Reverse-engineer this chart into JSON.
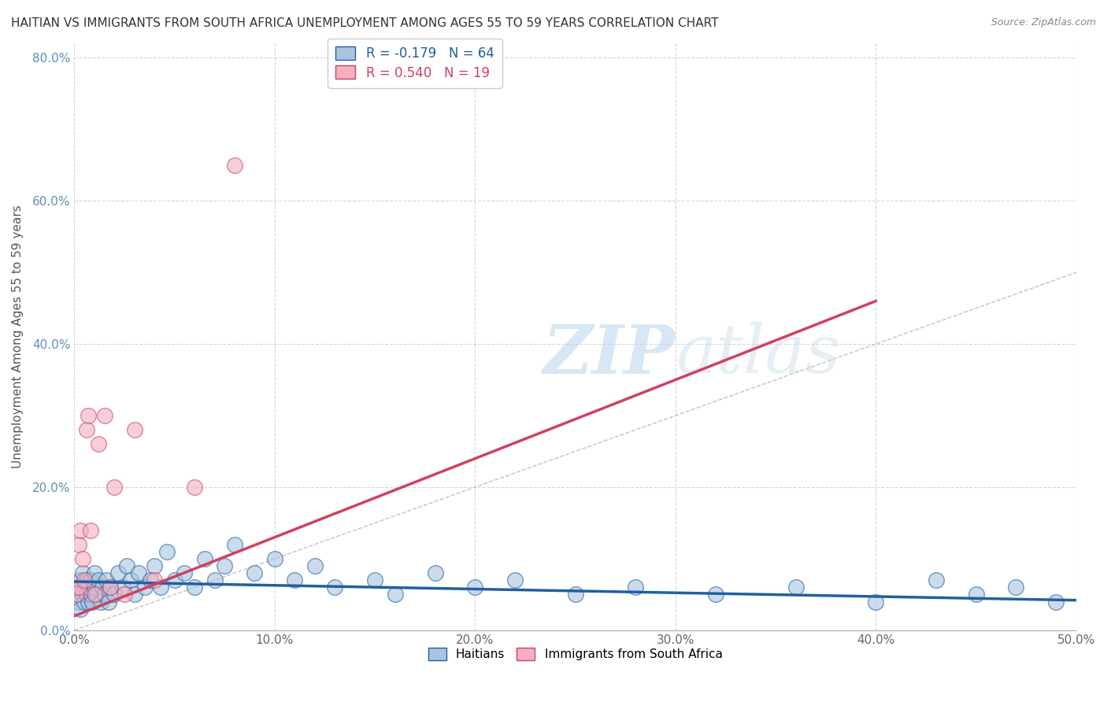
{
  "title": "HAITIAN VS IMMIGRANTS FROM SOUTH AFRICA UNEMPLOYMENT AMONG AGES 55 TO 59 YEARS CORRELATION CHART",
  "source": "Source: ZipAtlas.com",
  "xlabel": "",
  "ylabel": "Unemployment Among Ages 55 to 59 years",
  "xlim": [
    0,
    0.5
  ],
  "ylim": [
    0.0,
    0.82
  ],
  "xticks": [
    0.0,
    0.1,
    0.2,
    0.3,
    0.4,
    0.5
  ],
  "xticklabels": [
    "0.0%",
    "10.0%",
    "20.0%",
    "30.0%",
    "40.0%",
    "50.0%"
  ],
  "yticks": [
    0.0,
    0.2,
    0.4,
    0.6,
    0.8
  ],
  "yticklabels": [
    "0.0%",
    "20.0%",
    "40.0%",
    "60.0%",
    "80.0%"
  ],
  "haitian_R": -0.179,
  "haitian_N": 64,
  "sa_R": 0.54,
  "sa_N": 19,
  "haitian_color": "#a8c4e0",
  "haitian_line_color": "#2060a0",
  "sa_color": "#f4b0c0",
  "sa_line_color": "#d04060",
  "watermark_zip": "ZIP",
  "watermark_atlas": "atlas",
  "background_color": "#ffffff",
  "grid_color": "#cccccc",
  "haitian_x": [
    0.001,
    0.002,
    0.002,
    0.003,
    0.003,
    0.004,
    0.004,
    0.005,
    0.005,
    0.006,
    0.006,
    0.007,
    0.007,
    0.008,
    0.008,
    0.009,
    0.01,
    0.01,
    0.011,
    0.012,
    0.013,
    0.014,
    0.015,
    0.016,
    0.017,
    0.018,
    0.02,
    0.022,
    0.024,
    0.026,
    0.028,
    0.03,
    0.032,
    0.035,
    0.038,
    0.04,
    0.043,
    0.046,
    0.05,
    0.055,
    0.06,
    0.065,
    0.07,
    0.075,
    0.08,
    0.09,
    0.1,
    0.11,
    0.12,
    0.13,
    0.15,
    0.16,
    0.18,
    0.2,
    0.22,
    0.25,
    0.28,
    0.32,
    0.36,
    0.4,
    0.43,
    0.45,
    0.47,
    0.49
  ],
  "haitian_y": [
    0.05,
    0.04,
    0.06,
    0.03,
    0.07,
    0.05,
    0.08,
    0.04,
    0.06,
    0.05,
    0.07,
    0.04,
    0.06,
    0.05,
    0.07,
    0.04,
    0.06,
    0.08,
    0.05,
    0.07,
    0.04,
    0.06,
    0.05,
    0.07,
    0.04,
    0.06,
    0.05,
    0.08,
    0.06,
    0.09,
    0.07,
    0.05,
    0.08,
    0.06,
    0.07,
    0.09,
    0.06,
    0.11,
    0.07,
    0.08,
    0.06,
    0.1,
    0.07,
    0.09,
    0.12,
    0.08,
    0.1,
    0.07,
    0.09,
    0.06,
    0.07,
    0.05,
    0.08,
    0.06,
    0.07,
    0.05,
    0.06,
    0.05,
    0.06,
    0.04,
    0.07,
    0.05,
    0.06,
    0.04
  ],
  "sa_x": [
    0.001,
    0.002,
    0.002,
    0.003,
    0.004,
    0.005,
    0.006,
    0.007,
    0.008,
    0.01,
    0.012,
    0.015,
    0.018,
    0.02,
    0.025,
    0.03,
    0.04,
    0.06,
    0.08
  ],
  "sa_y": [
    0.05,
    0.06,
    0.12,
    0.14,
    0.1,
    0.07,
    0.28,
    0.3,
    0.14,
    0.05,
    0.26,
    0.3,
    0.06,
    0.2,
    0.05,
    0.28,
    0.07,
    0.2,
    0.65
  ],
  "haitian_trend_x": [
    0.0,
    0.5
  ],
  "haitian_trend_y": [
    0.068,
    0.042
  ],
  "sa_trend_x": [
    0.0,
    0.4
  ],
  "sa_trend_y": [
    0.02,
    0.46
  ]
}
